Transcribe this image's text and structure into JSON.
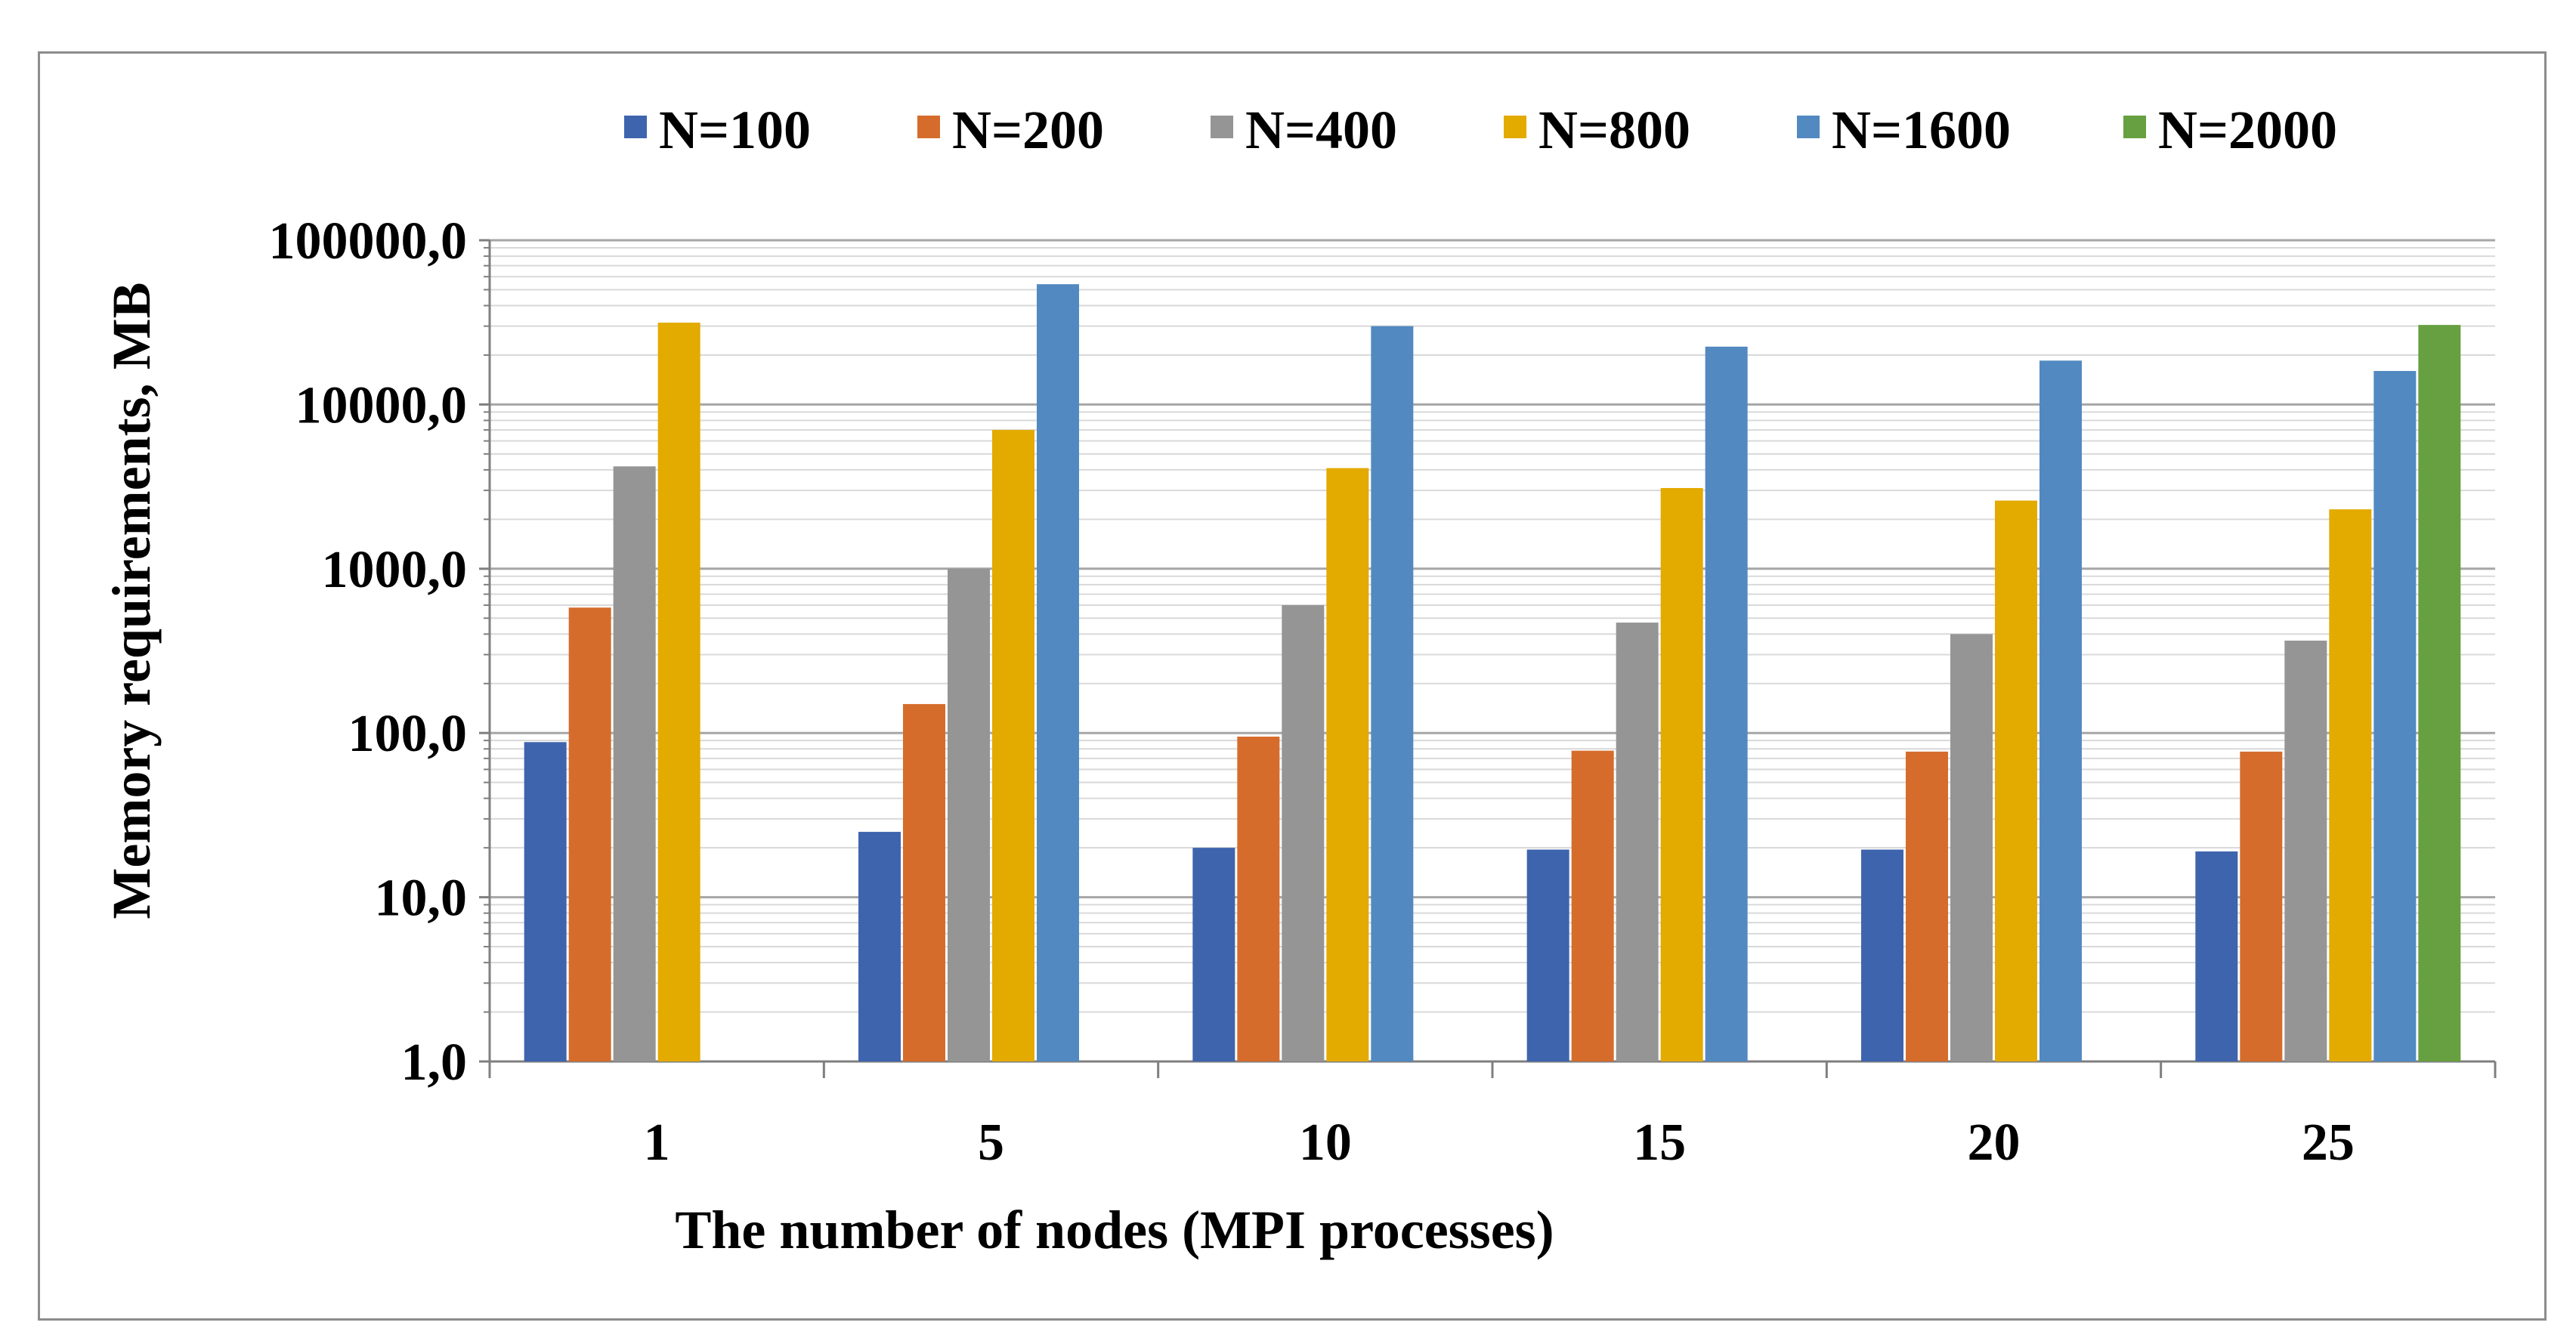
{
  "chart_data": {
    "type": "bar",
    "scale": "log",
    "title": "",
    "xlabel": "The number of nodes (MPI processes)",
    "ylabel": "Memory requirements, MB",
    "categories": [
      "1",
      "5",
      "10",
      "15",
      "20",
      "25"
    ],
    "ylim": [
      1,
      100000
    ],
    "yticks": [
      1,
      10,
      100,
      1000,
      10000,
      100000
    ],
    "ytick_labels": [
      "1,0",
      "10,0",
      "100,0",
      "1000,0",
      "10000,0",
      "100000,0"
    ],
    "grid": "horizontal major and minor",
    "legend_position": "top",
    "series": [
      {
        "name": "N=100",
        "color": "#3e64ad",
        "values": [
          88,
          25,
          20,
          19.5,
          19.5,
          19
        ]
      },
      {
        "name": "N=200",
        "color": "#d56c2c",
        "values": [
          580,
          150,
          95,
          78,
          77,
          77
        ]
      },
      {
        "name": "N=400",
        "color": "#959595",
        "values": [
          4200,
          1000,
          600,
          470,
          400,
          365
        ]
      },
      {
        "name": "N=800",
        "color": "#e3aa00",
        "values": [
          31500,
          7000,
          4100,
          3100,
          2600,
          2300
        ]
      },
      {
        "name": "N=1600",
        "color": "#5289c1",
        "values": [
          null,
          54000,
          30000,
          22500,
          18500,
          16000
        ]
      },
      {
        "name": "N=2000",
        "color": "#66a040",
        "values": [
          null,
          null,
          null,
          null,
          null,
          30500
        ]
      }
    ]
  }
}
